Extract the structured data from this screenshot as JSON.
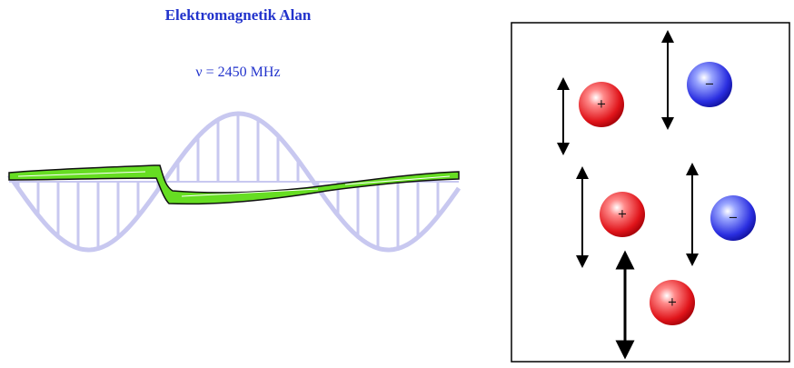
{
  "title": "Elektromagnetik Alan",
  "frequency": "ν = 2450 MHz",
  "charges": [
    {
      "sign": "+"
    },
    {
      "sign": "−"
    },
    {
      "sign": "+"
    },
    {
      "sign": "−"
    },
    {
      "sign": "+"
    }
  ]
}
